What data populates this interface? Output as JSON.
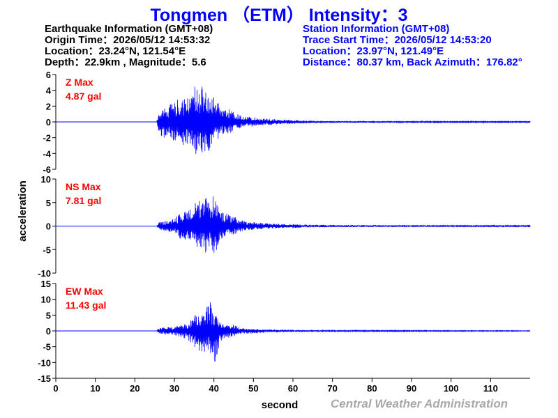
{
  "page": {
    "title": "Tongmen （ETM） Intensity：3",
    "credit": "Central Weather Administration"
  },
  "earthquake_info": {
    "heading": "Earthquake Information (GMT+08)",
    "origin_time": "Origin Time：2026/05/12 14:53:32",
    "location": "Location：23.24°N, 121.54°E",
    "depth_magnitude": "Depth：22.9km , Magnitude：5.6"
  },
  "station_info": {
    "heading": "Station Information (GMT+08)",
    "trace_start": "Trace Start Time：2026/05/12 14:53:20",
    "location": "Location：23.97°N, 121.49°E",
    "distance": "Distance：80.37 km, Back Azimuth：176.82°"
  },
  "colors": {
    "title": "#0000ff",
    "trace": "#0000ff",
    "max_label": "#ff0000",
    "station_text": "#0000ff",
    "credit": "#a8a8a8"
  },
  "chart_data": {
    "type": "line",
    "xlabel": "second",
    "ylabel": "acceleration",
    "xlim": [
      0,
      120
    ],
    "xticks": [
      0,
      10,
      20,
      30,
      40,
      50,
      60,
      70,
      80,
      90,
      100,
      110
    ],
    "panels": [
      {
        "component": "Z",
        "max_label": "Z Max",
        "max_value": "4.87 gal",
        "ylim": [
          -6,
          6
        ],
        "yticks": [
          6,
          4,
          2,
          0,
          -2,
          -4,
          -6
        ],
        "ytick_labels": [
          "6",
          "4",
          "2",
          "0",
          "-2",
          "-4",
          "-6"
        ],
        "series": [
          {
            "x": [
              0,
              25.5,
              26,
              27,
              28,
              29,
              30,
              31,
              32,
              33,
              34,
              35,
              36,
              37,
              38,
              39,
              40,
              41,
              42,
              43,
              44,
              45,
              46,
              47,
              48,
              50,
              52,
              54,
              56,
              58,
              60,
              65,
              70,
              80,
              90,
              100,
              120
            ],
            "y": [
              0,
              0,
              1.2,
              1.8,
              1.9,
              2.2,
              2.4,
              2.9,
              2.7,
              3.0,
              3.2,
              4.87,
              4.0,
              4.6,
              3.8,
              3.6,
              3.2,
              2.4,
              2.0,
              1.7,
              1.6,
              1.2,
              1.0,
              0.9,
              0.7,
              0.6,
              0.5,
              0.4,
              0.35,
              0.3,
              0.25,
              0.15,
              0.12,
              0.1,
              0.08,
              0.06,
              0.05
            ],
            "y_min": [
              0,
              0,
              -1.3,
              -2.5,
              -1.8,
              -2.0,
              -2.5,
              -2.6,
              -2.9,
              -3.2,
              -3.4,
              -4.3,
              -3.9,
              -4.2,
              -3.6,
              -3.8,
              -2.6,
              -2.2,
              -1.8,
              -1.5,
              -1.4,
              -1.1,
              -0.9,
              -0.8,
              -0.7,
              -0.6,
              -0.5,
              -0.4,
              -0.35,
              -0.3,
              -0.25,
              -0.15,
              -0.12,
              -0.1,
              -0.08,
              -0.06,
              -0.05
            ]
          }
        ]
      },
      {
        "component": "NS",
        "max_label": "NS Max",
        "max_value": "7.81 gal",
        "ylim": [
          -10,
          10
        ],
        "yticks": [
          10,
          5,
          0,
          -5,
          -10
        ],
        "ytick_labels": [
          "10",
          "5",
          "0",
          "-5",
          "-10"
        ],
        "series": [
          {
            "x": [
              0,
              25.5,
              26,
              27,
              28,
              29,
              30,
              31,
              32,
              33,
              34,
              35,
              36,
              37,
              38,
              39,
              40,
              41,
              42,
              43,
              44,
              45,
              46,
              47,
              48,
              50,
              52,
              54,
              56,
              58,
              60,
              65,
              70,
              80,
              90,
              100,
              120
            ],
            "y": [
              0,
              0,
              0.8,
              1.0,
              1.1,
              1.2,
              1.6,
              2.4,
              3.1,
              3.3,
              4.1,
              6.5,
              5.8,
              4.7,
              6.2,
              5.3,
              7.81,
              5.1,
              2.8,
              2.9,
              2.3,
              2.1,
              1.7,
              1.2,
              1.1,
              0.9,
              0.7,
              0.6,
              0.5,
              0.45,
              0.4,
              0.3,
              0.25,
              0.2,
              0.15,
              0.12,
              0.1
            ],
            "y_min": [
              0,
              0,
              -0.9,
              -1.1,
              -1.0,
              -1.3,
              -1.5,
              -2.6,
              -2.8,
              -3.2,
              -3.9,
              -3.4,
              -5.5,
              -4.3,
              -5.9,
              -3.7,
              -7.81,
              -4.4,
              -2.7,
              -2.4,
              -2.0,
              -1.9,
              -1.5,
              -1.2,
              -1.0,
              -0.9,
              -0.7,
              -0.6,
              -0.5,
              -0.45,
              -0.4,
              -0.3,
              -0.25,
              -0.2,
              -0.15,
              -0.12,
              -0.1
            ]
          }
        ]
      },
      {
        "component": "EW",
        "max_label": "EW Max",
        "max_value": "11.43 gal",
        "ylim": [
          -15,
          15
        ],
        "yticks": [
          15,
          10,
          5,
          0,
          -5,
          -10,
          -15
        ],
        "ytick_labels": [
          "15",
          "10",
          "5",
          "0",
          "-5",
          "-10",
          "-15"
        ],
        "series": [
          {
            "x": [
              0,
              25.5,
              26,
              27,
              28,
              29,
              30,
              31,
              32,
              33,
              34,
              35,
              36,
              37,
              38,
              39,
              40,
              41,
              42,
              43,
              44,
              45,
              46,
              47,
              48,
              50,
              52,
              54,
              56,
              58,
              60,
              65,
              70,
              80,
              90,
              100,
              120
            ],
            "y": [
              0,
              0,
              1.0,
              1.1,
              1.3,
              1.2,
              1.4,
              2.0,
              1.9,
              2.5,
              3.0,
              6.0,
              4.5,
              5.0,
              6.9,
              10.0,
              5.6,
              4.3,
              2.9,
              2.0,
              2.4,
              1.9,
              1.5,
              1.1,
              0.9,
              0.8,
              0.6,
              0.5,
              0.45,
              0.4,
              0.35,
              0.25,
              0.2,
              0.15,
              0.12,
              0.1,
              0.08
            ],
            "y_min": [
              0,
              0,
              -1.0,
              -1.0,
              -1.2,
              -1.3,
              -1.4,
              -1.8,
              -2.1,
              -2.6,
              -3.5,
              -5.4,
              -6.2,
              -7.1,
              -6.2,
              -8.0,
              -11.43,
              -6.1,
              -3.0,
              -2.3,
              -2.1,
              -1.8,
              -1.4,
              -1.0,
              -0.9,
              -0.8,
              -0.6,
              -0.5,
              -0.45,
              -0.4,
              -0.35,
              -0.25,
              -0.2,
              -0.15,
              -0.12,
              -0.1,
              -0.08
            ]
          }
        ]
      }
    ]
  }
}
